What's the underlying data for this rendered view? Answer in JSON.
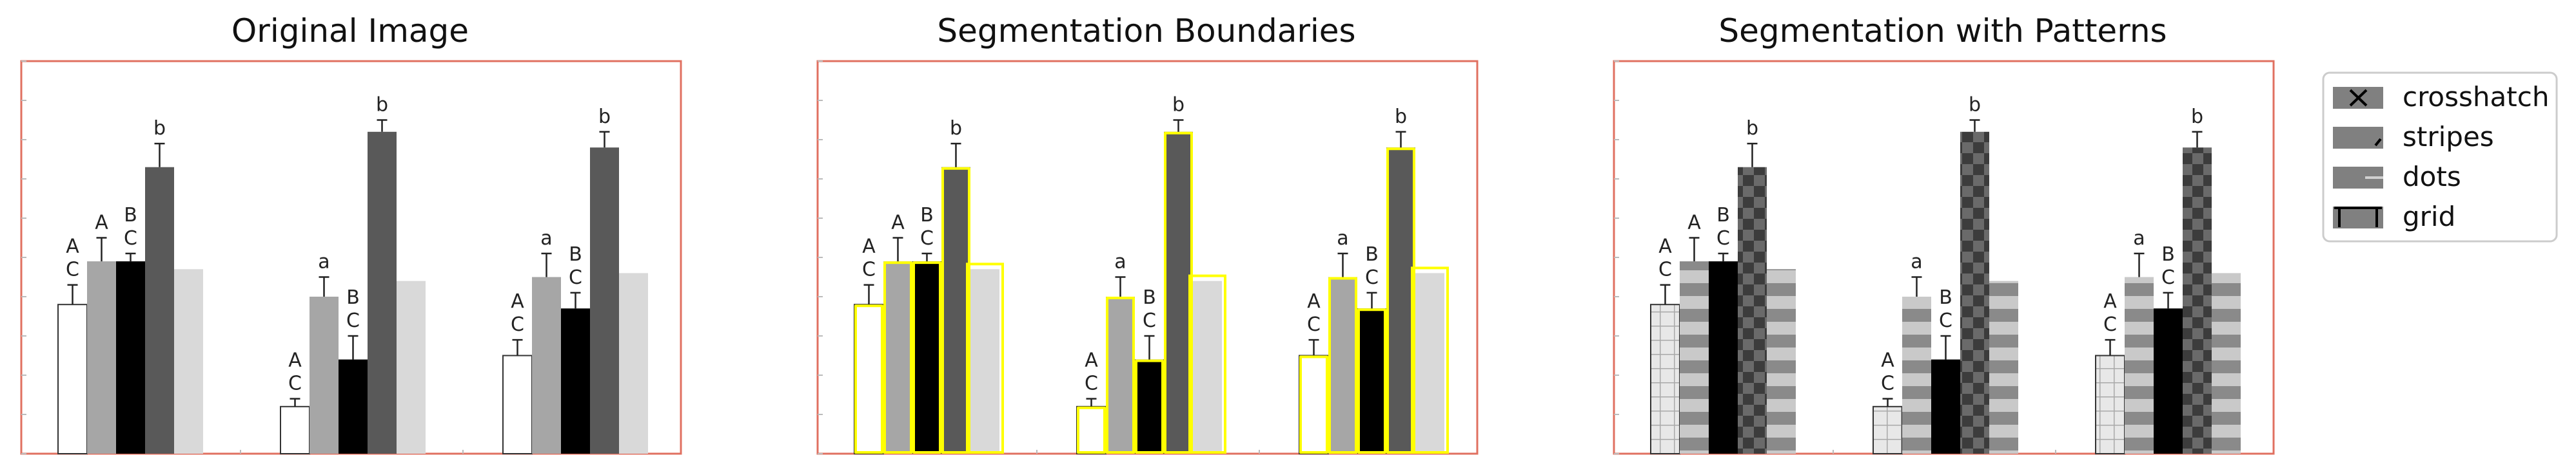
{
  "panels": [
    {
      "title": "Original Image",
      "variant": "original"
    },
    {
      "title": "Segmentation Boundaries",
      "variant": "boundaries"
    },
    {
      "title": "Segmentation with Patterns",
      "variant": "patterns"
    }
  ],
  "legend": {
    "items": [
      {
        "label": "crosshatch",
        "pattern": "crosshatch"
      },
      {
        "label": "stripes",
        "pattern": "stripes"
      },
      {
        "label": "dots",
        "pattern": "dots"
      },
      {
        "label": "grid",
        "pattern": "grid"
      }
    ]
  },
  "colors": {
    "frame": "#e07060",
    "boundary": "#ffff00",
    "bar_fills": [
      "#ffffff",
      "#a6a6a6",
      "#000000",
      "#595959",
      "#d9d9d9"
    ]
  },
  "chart_data": {
    "type": "bar",
    "ylim": [
      0,
      100
    ],
    "groups": [
      {
        "bars": [
          {
            "value": 38,
            "err": 5,
            "label": "A C"
          },
          {
            "value": 49,
            "err": 6,
            "label": "A"
          },
          {
            "value": 49,
            "err": 2,
            "label": "B C"
          },
          {
            "value": 73,
            "err": 6,
            "label": "b"
          },
          {
            "value": 47,
            "err": 0,
            "label": ""
          }
        ]
      },
      {
        "bars": [
          {
            "value": 12,
            "err": 2,
            "label": "A C"
          },
          {
            "value": 40,
            "err": 5,
            "label": "a"
          },
          {
            "value": 24,
            "err": 6,
            "label": "B C"
          },
          {
            "value": 82,
            "err": 3,
            "label": "b"
          },
          {
            "value": 44,
            "err": 0,
            "label": ""
          }
        ]
      },
      {
        "bars": [
          {
            "value": 25,
            "err": 4,
            "label": "A C"
          },
          {
            "value": 45,
            "err": 6,
            "label": "a"
          },
          {
            "value": 37,
            "err": 4,
            "label": "B C"
          },
          {
            "value": 78,
            "err": 4,
            "label": "b"
          },
          {
            "value": 46,
            "err": 0,
            "label": ""
          }
        ]
      }
    ]
  }
}
